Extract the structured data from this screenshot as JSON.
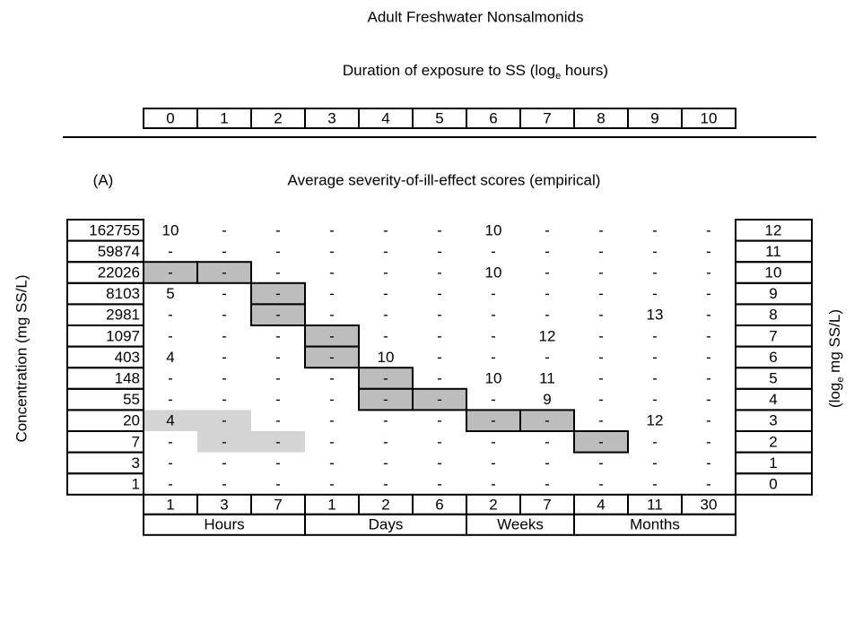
{
  "title": "Adult Freshwater Nonsalmonids",
  "subtitle": {
    "text": "Duration of exposure to SS (log",
    "subscript": "e",
    "after": " hours)"
  },
  "top_scale": [
    "0",
    "1",
    "2",
    "3",
    "4",
    "5",
    "6",
    "7",
    "8",
    "9",
    "10"
  ],
  "panel_label": "(A)",
  "panel_title": "Average severity-of-ill-effect scores (empirical)",
  "y_label": "Concentration (mg SS/L)",
  "y2_label": {
    "text": "(log",
    "subscript": "e",
    "after": " mg SS/L)"
  },
  "rows": [
    {
      "concentration": "162755",
      "log": "12",
      "cells": [
        "10",
        "-",
        "-",
        "-",
        "-",
        "-",
        "10",
        "-",
        "-",
        "-",
        "-"
      ]
    },
    {
      "concentration": "59874",
      "log": "11",
      "cells": [
        "-",
        "-",
        "-",
        "-",
        "-",
        "-",
        "-",
        "-",
        "-",
        "-",
        "-"
      ]
    },
    {
      "concentration": "22026",
      "log": "10",
      "cells": [
        "-",
        "-",
        "-",
        "-",
        "-",
        "-",
        "10",
        "-",
        "-",
        "-",
        "-"
      ]
    },
    {
      "concentration": "8103",
      "log": "9",
      "cells": [
        "5",
        "-",
        "-",
        "-",
        "-",
        "-",
        "-",
        "-",
        "-",
        "-",
        "-"
      ]
    },
    {
      "concentration": "2981",
      "log": "8",
      "cells": [
        "-",
        "-",
        "-",
        "-",
        "-",
        "-",
        "-",
        "-",
        "-",
        "13",
        "-"
      ]
    },
    {
      "concentration": "1097",
      "log": "7",
      "cells": [
        "-",
        "-",
        "-",
        "-",
        "-",
        "-",
        "-",
        "12",
        "-",
        "-",
        "-"
      ]
    },
    {
      "concentration": "403",
      "log": "6",
      "cells": [
        "4",
        "-",
        "-",
        "-",
        "10",
        "-",
        "-",
        "-",
        "-",
        "-",
        "-"
      ]
    },
    {
      "concentration": "148",
      "log": "5",
      "cells": [
        "-",
        "-",
        "-",
        "-",
        "-",
        "-",
        "10",
        "11",
        "-",
        "-",
        "-"
      ]
    },
    {
      "concentration": "55",
      "log": "4",
      "cells": [
        "-",
        "-",
        "-",
        "-",
        "-",
        "-",
        "-",
        "9",
        "-",
        "-",
        "-"
      ]
    },
    {
      "concentration": "20",
      "log": "3",
      "cells": [
        "4",
        "-",
        "-",
        "-",
        "-",
        "-",
        "-",
        "-",
        "-",
        "12",
        "-"
      ]
    },
    {
      "concentration": "7",
      "log": "2",
      "cells": [
        "-",
        "-",
        "-",
        "-",
        "-",
        "-",
        "-",
        "-",
        "-",
        "-",
        "-"
      ]
    },
    {
      "concentration": "3",
      "log": "1",
      "cells": [
        "-",
        "-",
        "-",
        "-",
        "-",
        "-",
        "-",
        "-",
        "-",
        "-",
        "-"
      ]
    },
    {
      "concentration": "1",
      "log": "0",
      "cells": [
        "-",
        "-",
        "-",
        "-",
        "-",
        "-",
        "-",
        "-",
        "-",
        "-",
        "-"
      ]
    }
  ],
  "bottom": {
    "durations": [
      "1",
      "3",
      "7",
      "1",
      "2",
      "6",
      "2",
      "7",
      "4",
      "11",
      "30"
    ],
    "units": [
      "Hours",
      "Days",
      "Weeks",
      "Months"
    ]
  }
}
